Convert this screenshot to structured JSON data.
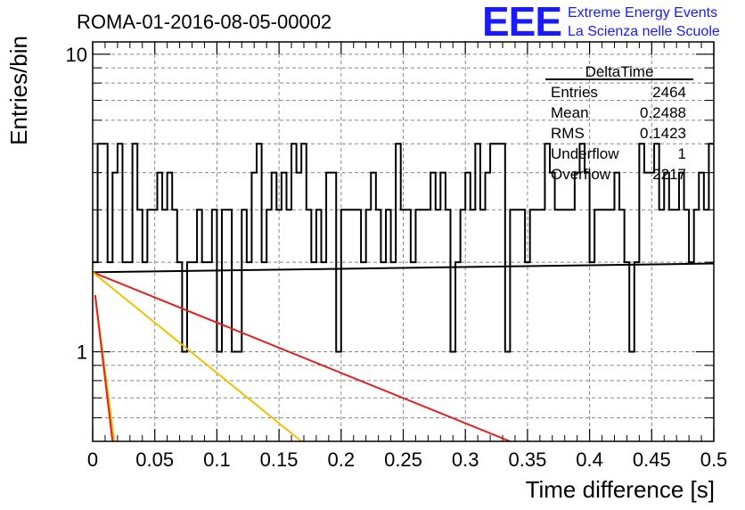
{
  "chart_data": {
    "type": "histogram",
    "title": "ROMA-01-2016-08-05-00002",
    "xlabel": "Time difference [s]",
    "ylabel": "Entries/bin",
    "xlim": [
      0,
      0.5
    ],
    "ylim": [
      0.5,
      11
    ],
    "y_scale": "log",
    "grid": true,
    "x_ticks": [
      "0",
      "0.05",
      "0.1",
      "0.15",
      "0.2",
      "0.25",
      "0.3",
      "0.35",
      "0.4",
      "0.45",
      "0.5"
    ],
    "y_ticks": [
      "1",
      "10"
    ],
    "bin_width": 0.004,
    "bin_values": [
      2,
      5,
      5,
      2,
      4,
      5,
      2,
      2,
      5,
      3,
      2,
      3,
      3,
      4,
      3,
      4,
      3,
      2,
      1,
      2,
      2,
      3,
      2,
      2,
      3,
      1,
      3,
      3,
      1,
      1,
      3,
      2,
      4,
      5,
      2,
      3,
      4,
      3,
      4,
      3,
      5,
      4,
      5,
      3,
      2,
      3,
      2,
      4,
      4,
      1,
      3,
      3,
      3,
      3,
      2,
      3,
      4,
      3,
      2,
      3,
      2,
      5,
      3,
      3,
      2,
      3,
      3,
      3,
      4,
      3,
      4,
      3,
      1,
      2,
      3,
      4,
      3,
      5,
      3,
      4,
      5,
      5,
      5,
      1,
      3,
      3,
      3,
      2,
      3,
      3,
      3,
      5,
      4,
      3,
      3,
      3,
      3,
      4,
      5,
      4,
      2,
      3,
      3,
      3,
      3,
      4,
      3,
      2,
      1,
      2,
      5,
      4,
      4,
      5,
      3,
      4,
      3,
      3,
      4,
      3,
      2,
      3,
      4,
      3,
      5
    ],
    "fits": [
      {
        "color": "#000000",
        "points": [
          [
            0.0,
            1.85
          ],
          [
            0.5,
            1.98
          ]
        ]
      },
      {
        "color": "#e02020",
        "points": [
          [
            0.0,
            1.85
          ],
          [
            0.336,
            0.5
          ]
        ]
      },
      {
        "color": "#f0c000",
        "points": [
          [
            0.0,
            1.85
          ],
          [
            0.168,
            0.5
          ]
        ]
      },
      {
        "color": "#f0c000",
        "points": [
          [
            0.002,
            1.55
          ],
          [
            0.0175,
            0.5
          ]
        ]
      },
      {
        "color": "#e02020",
        "points": [
          [
            0.002,
            1.55
          ],
          [
            0.016,
            0.5
          ]
        ]
      }
    ],
    "stats_box": {
      "name": "DeltaTime",
      "rows": [
        {
          "label": "Entries",
          "value": "2464"
        },
        {
          "label": "Mean",
          "value": "0.2488"
        },
        {
          "label": "RMS",
          "value": "0.1423"
        },
        {
          "label": "Underflow",
          "value": "1"
        },
        {
          "label": "Overflow",
          "value": "2217"
        }
      ]
    }
  },
  "logo": {
    "mark": "EEE",
    "line1": "Extreme Energy Events",
    "line2": "La Scienza nelle Scuole"
  }
}
